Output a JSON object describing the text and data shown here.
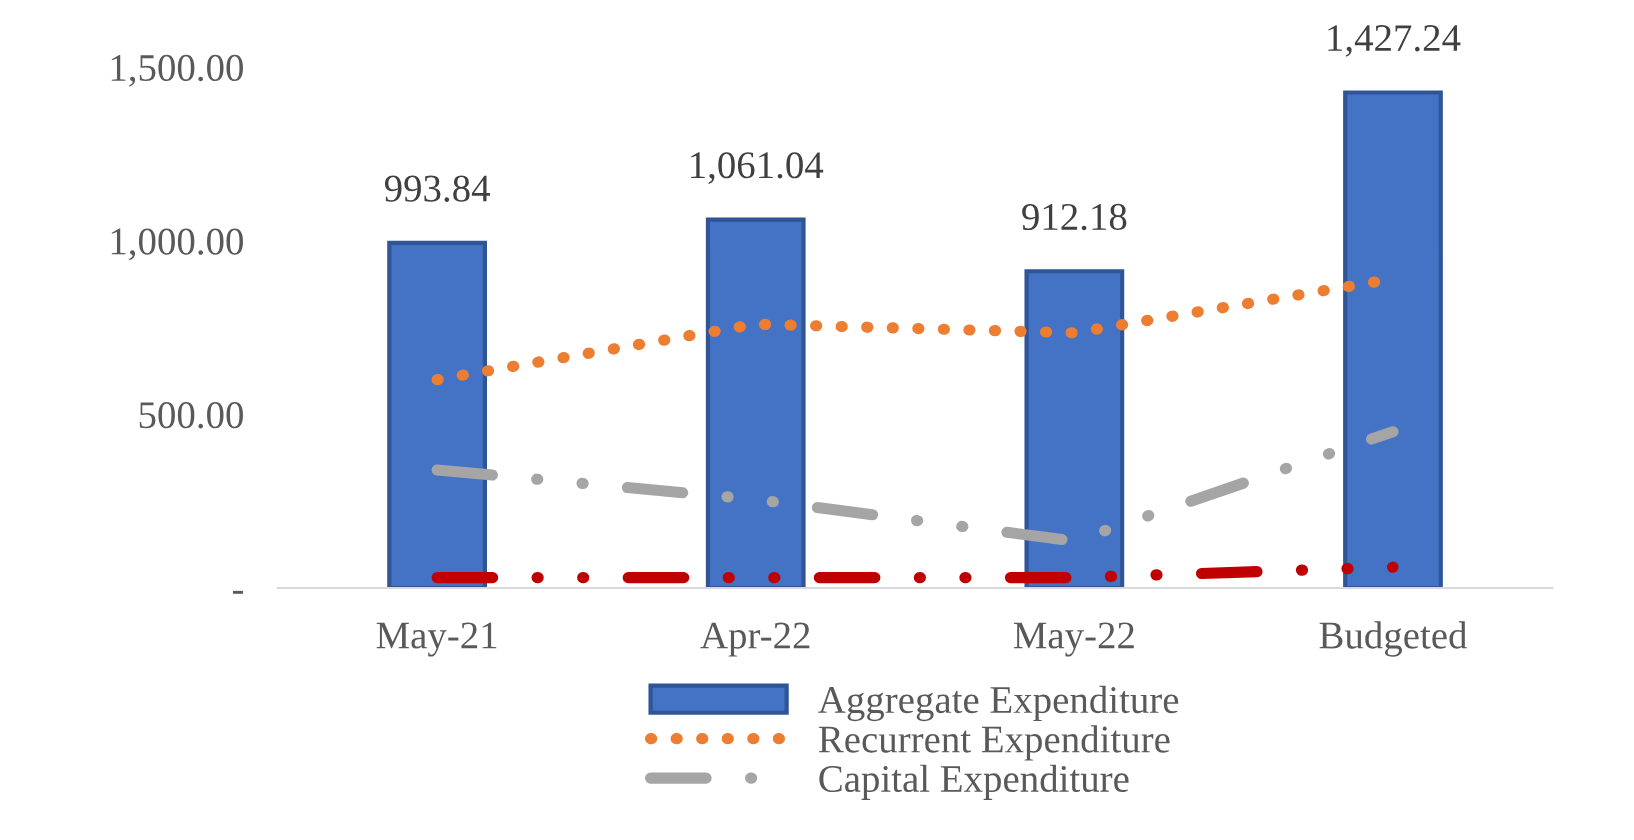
{
  "chart_data": {
    "type": "bar",
    "categories": [
      "May-21",
      "Apr-22",
      "May-22",
      "Budgeted"
    ],
    "series": [
      {
        "name": "Aggregate Expenditure",
        "color": "#4472c4",
        "values": [
          993.84,
          1061.04,
          912.18,
          1427.24
        ],
        "value_labels": [
          "993.84",
          "1,061.04",
          "912.18",
          "1,427.24"
        ]
      },
      {
        "name": "Recurrent Expenditure",
        "type": "line",
        "color": "#ed7d31",
        "line_style": "dotted",
        "values": [
          600,
          760,
          735,
          890
        ]
      },
      {
        "name": "Capital Expenditure",
        "type": "line",
        "color": "#a5a5a5",
        "line_style": "dashdot",
        "values": [
          340,
          255,
          135,
          450
        ]
      },
      {
        "type": "line",
        "color": "#c00000",
        "line_style": "dashdot",
        "values": [
          30,
          30,
          30,
          60
        ]
      }
    ],
    "ylim": [
      0,
      1500
    ],
    "yticks": [
      {
        "value": 0,
        "label": "-"
      },
      {
        "value": 500,
        "label": "500.00"
      },
      {
        "value": 1000,
        "label": "1,000.00"
      },
      {
        "value": 1500,
        "label": "1,500.00"
      }
    ],
    "grid": false,
    "legend": "bottom"
  }
}
